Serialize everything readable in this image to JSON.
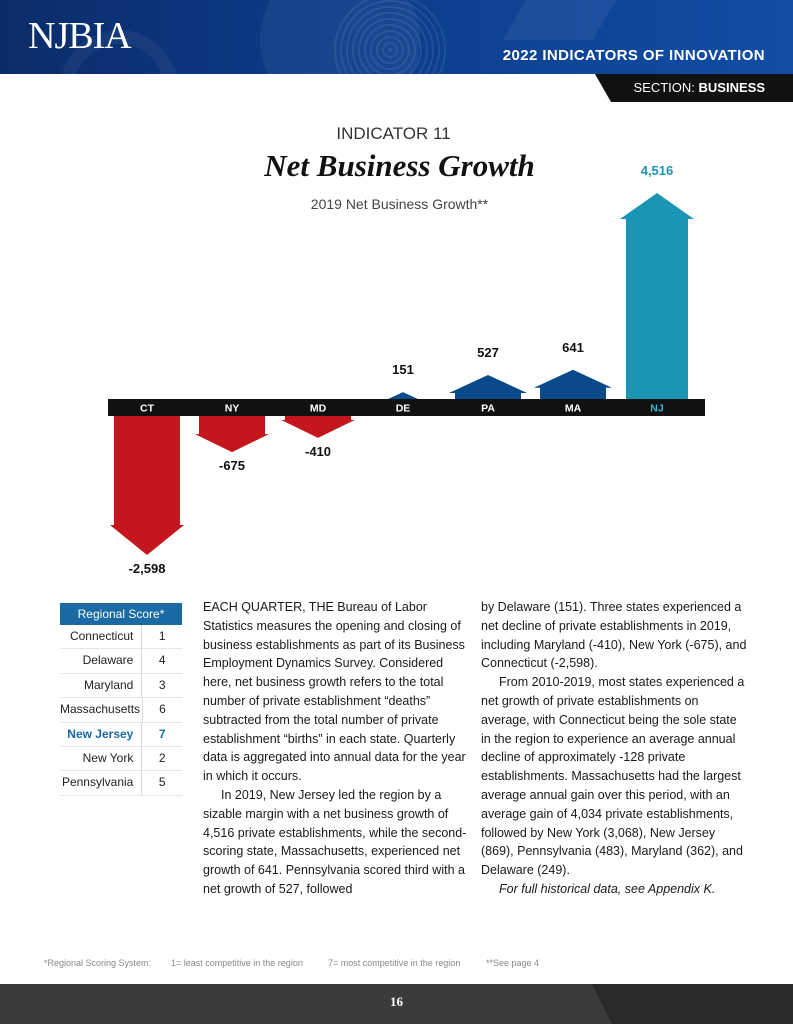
{
  "header": {
    "logo": "NJBIA",
    "report_title": "2022 INDICATORS OF INNOVATION",
    "section_prefix": "SECTION:",
    "section_name": "BUSINESS"
  },
  "indicator": {
    "label": "INDICATOR 11",
    "title": "Net Business Growth",
    "subtitle": "2019 Net Business Growth**"
  },
  "chart_data": {
    "type": "bar",
    "categories": [
      "CT",
      "NY",
      "MD",
      "DE",
      "PA",
      "MA",
      "NJ"
    ],
    "values": [
      -2598,
      -675,
      -410,
      151,
      527,
      641,
      4516
    ],
    "value_labels": [
      "-2,598",
      "-675",
      "-410",
      "151",
      "527",
      "641",
      "4,516"
    ],
    "highlight": "NJ",
    "colors": {
      "negative": "#c4161c",
      "positive": "#0b4a8a",
      "highlight": "#1a95b4",
      "axis": "#111111"
    }
  },
  "regional_score": {
    "header": "Regional Score*",
    "rows": [
      {
        "state": "Connecticut",
        "score": "1"
      },
      {
        "state": "Delaware",
        "score": "4"
      },
      {
        "state": "Maryland",
        "score": "3"
      },
      {
        "state": "Massachusetts",
        "score": "6"
      },
      {
        "state": "New Jersey",
        "score": "7"
      },
      {
        "state": "New York",
        "score": "2"
      },
      {
        "state": "Pennsylvania",
        "score": "5"
      }
    ]
  },
  "body": {
    "col1": [
      "EACH QUARTER, THE Bureau of Labor Statistics measures the opening and closing of business establishments as part of its Business Employment Dynamics Survey. Considered here, net business growth refers to the total number of private establishment “deaths” subtracted from the total number of private establishment “births” in each state. Quarterly data is aggregated into annual data for the year in which it occurs.",
      "In 2019, New Jersey led the region by a sizable margin with a net business growth of 4,516 private establishments, while the second-scoring state, Massachusetts, experienced net growth of 641. Pennsylvania scored third with a net growth of 527, followed"
    ],
    "col2": [
      "by Delaware (151). Three states experienced a net decline of private establishments in 2019, including Maryland (-410), New York (-675), and Connecticut (-2,598).",
      "From 2010-2019, most states experienced a net growth of private establishments on average, with Connecticut being the sole state in the region to experience an average annual decline of approximately -128 private establishments. Massachusetts had the largest average annual gain over this period, with an average gain of 4,034 private establishments, followed by New York (3,068), New Jersey (869), Pennsylvania (483), Maryland (362), and Delaware (249)."
    ],
    "col2_note": "For full historical data, see Appendix K."
  },
  "footnote": {
    "system": "*Regional Scoring System:",
    "least": "1= least competitive in the region",
    "most": "7= most competitive in the region",
    "see": "**See page 4"
  },
  "footer": {
    "page": "16"
  }
}
